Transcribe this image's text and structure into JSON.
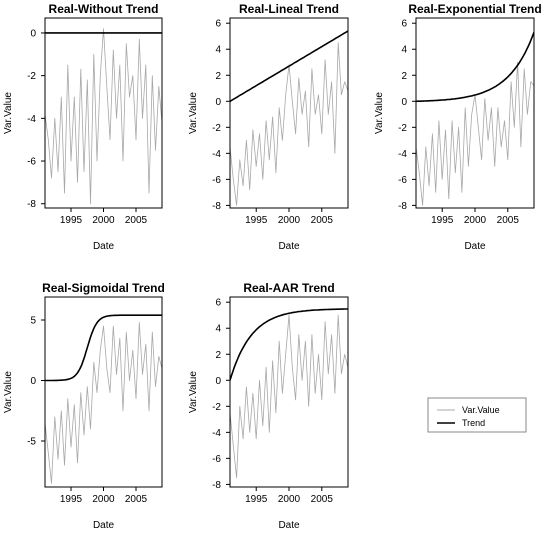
{
  "colors": {
    "var_value": "#a8a8a8",
    "trend": "#000000",
    "background": "#ffffff"
  },
  "legend": {
    "placement": "bottom-right",
    "items": [
      "Var.Value",
      "Trend"
    ]
  },
  "chart_data": [
    {
      "type": "line",
      "title": "Real-Without Trend",
      "xlabel": "Date",
      "ylabel": "Var.Value",
      "xlim": [
        1991,
        2009
      ],
      "ylim": [
        -8.2,
        0.7
      ],
      "xticks": [
        1995,
        2000,
        2005
      ],
      "yticks": [
        -8,
        -6,
        -4,
        -2,
        0
      ],
      "trend": {
        "kind": "constant",
        "value": 0
      },
      "series": [
        {
          "name": "Var.Value",
          "x": [
            1991.0,
            1991.5,
            1992.0,
            1992.5,
            1993.0,
            1993.5,
            1994.0,
            1994.5,
            1995.0,
            1995.5,
            1996.0,
            1996.5,
            1997.0,
            1997.5,
            1998.0,
            1998.5,
            1999.0,
            1999.5,
            2000.0,
            2000.5,
            2001.0,
            2001.5,
            2002.0,
            2002.5,
            2003.0,
            2003.5,
            2004.0,
            2004.5,
            2005.0,
            2005.5,
            2006.0,
            2006.5,
            2007.0,
            2007.5,
            2008.0,
            2008.5,
            2009.0
          ],
          "y": [
            -3.8,
            -5.0,
            -6.8,
            -4.0,
            -6.5,
            -3.0,
            -7.5,
            -1.5,
            -6.0,
            -3.0,
            -7.0,
            -1.7,
            -6.5,
            -2.2,
            -8.0,
            -1.0,
            -6.0,
            -2.0,
            0.2,
            -2.5,
            -5.0,
            -0.8,
            -4.0,
            -1.5,
            -6.0,
            -0.5,
            -3.0,
            -2.0,
            -5.0,
            -0.3,
            -4.0,
            -1.5,
            -7.5,
            -2.0,
            -5.5,
            -2.5,
            -4.2
          ]
        },
        {
          "name": "Trend",
          "x": [
            1991,
            2009
          ],
          "y": [
            0,
            0
          ]
        }
      ]
    },
    {
      "type": "line",
      "title": "Real-Lineal Trend",
      "xlabel": "Date",
      "ylabel": "Var.Value",
      "xlim": [
        1991,
        2009
      ],
      "ylim": [
        -8.2,
        6.4
      ],
      "xticks": [
        1995,
        2000,
        2005
      ],
      "yticks": [
        -8,
        -6,
        -4,
        -2,
        0,
        2,
        4,
        6
      ],
      "trend": {
        "kind": "linear",
        "start": 0,
        "end": 5.4
      },
      "series": [
        {
          "name": "Var.Value",
          "x": [
            1991.0,
            1991.5,
            1992.0,
            1992.5,
            1993.0,
            1993.5,
            1994.0,
            1994.5,
            1995.0,
            1995.5,
            1996.0,
            1996.5,
            1997.0,
            1997.5,
            1998.0,
            1998.5,
            1999.0,
            1999.5,
            2000.0,
            2000.5,
            2001.0,
            2001.5,
            2002.0,
            2002.5,
            2003.0,
            2003.5,
            2004.0,
            2004.5,
            2005.0,
            2005.5,
            2006.0,
            2006.5,
            2007.0,
            2007.5,
            2008.0,
            2008.5,
            2009.0
          ],
          "y": [
            -3.5,
            -6.0,
            -8.0,
            -4.5,
            -6.5,
            -3.0,
            -6.8,
            -2.2,
            -5.0,
            -2.5,
            -6.0,
            -1.5,
            -4.5,
            -1.2,
            -5.5,
            -0.5,
            -3.0,
            0.5,
            2.8,
            0.0,
            -2.5,
            1.8,
            -1.0,
            0.8,
            -3.5,
            2.5,
            -1.0,
            0.5,
            -2.5,
            3.2,
            -1.0,
            1.5,
            -4.0,
            4.5,
            0.5,
            1.5,
            0.8
          ]
        },
        {
          "name": "Trend",
          "x": [
            1991,
            2009
          ],
          "y": [
            0,
            5.4
          ]
        }
      ]
    },
    {
      "type": "line",
      "title": "Real-Exponential Trend",
      "xlabel": "Date",
      "ylabel": "Var.Value",
      "xlim": [
        1991,
        2009
      ],
      "ylim": [
        -8.2,
        6.4
      ],
      "xticks": [
        1995,
        2000,
        2005
      ],
      "yticks": [
        -8,
        -6,
        -4,
        -2,
        0,
        2,
        4,
        6
      ],
      "trend": {
        "kind": "exponential",
        "start": 0,
        "end": 5.3
      },
      "series": [
        {
          "name": "Var.Value",
          "x": [
            1991.0,
            1991.5,
            1992.0,
            1992.5,
            1993.0,
            1993.5,
            1994.0,
            1994.5,
            1995.0,
            1995.5,
            1996.0,
            1996.5,
            1997.0,
            1997.5,
            1998.0,
            1998.5,
            1999.0,
            1999.5,
            2000.0,
            2000.5,
            2001.0,
            2001.5,
            2002.0,
            2002.5,
            2003.0,
            2003.5,
            2004.0,
            2004.5,
            2005.0,
            2005.5,
            2006.0,
            2006.5,
            2007.0,
            2007.5,
            2008.0,
            2008.5,
            2009.0
          ],
          "y": [
            -3.5,
            -5.5,
            -8.0,
            -3.5,
            -6.5,
            -2.5,
            -7.0,
            -1.5,
            -6.0,
            -2.2,
            -7.5,
            -1.5,
            -5.5,
            -2.0,
            -7.0,
            -0.5,
            -5.0,
            -1.0,
            0.5,
            -2.0,
            -4.5,
            0.2,
            -3.0,
            -0.5,
            -5.0,
            -0.5,
            -3.5,
            -1.5,
            -4.5,
            1.5,
            -2.0,
            3.0,
            -3.5,
            2.5,
            -1.0,
            1.5,
            1.2
          ]
        },
        {
          "name": "Trend",
          "x": [
            1991,
            2009
          ],
          "y": [
            0,
            5.3
          ]
        }
      ]
    },
    {
      "type": "line",
      "title": "Real-Sigmoidal Trend",
      "xlabel": "Date",
      "ylabel": "Var.Value",
      "xlim": [
        1991,
        2009
      ],
      "ylim": [
        -8.8,
        6.9
      ],
      "xticks": [
        1995,
        2000,
        2005
      ],
      "yticks": [
        -5,
        0,
        5
      ],
      "trend": {
        "kind": "sigmoid",
        "max": 5.4,
        "midpoint": 1997.5
      },
      "series": [
        {
          "name": "Var.Value",
          "x": [
            1991.0,
            1991.5,
            1992.0,
            1992.5,
            1993.0,
            1993.5,
            1994.0,
            1994.5,
            1995.0,
            1995.5,
            1996.0,
            1996.5,
            1997.0,
            1997.5,
            1998.0,
            1998.5,
            1999.0,
            1999.5,
            2000.0,
            2000.5,
            2001.0,
            2001.5,
            2002.0,
            2002.5,
            2003.0,
            2003.5,
            2004.0,
            2004.5,
            2005.0,
            2005.5,
            2006.0,
            2006.5,
            2007.0,
            2007.5,
            2008.0,
            2008.5,
            2009.0
          ],
          "y": [
            -3.5,
            -6.0,
            -8.5,
            -3.0,
            -6.5,
            -2.5,
            -7.0,
            -1.5,
            -5.5,
            -2.0,
            -6.8,
            -1.0,
            -4.5,
            -0.5,
            -4.0,
            1.5,
            -1.0,
            2.5,
            4.5,
            1.0,
            -1.0,
            4.5,
            0.5,
            3.5,
            -2.5,
            4.0,
            0.0,
            2.5,
            -1.5,
            4.8,
            0.5,
            3.0,
            -2.5,
            4.0,
            -0.5,
            2.0,
            1.0
          ]
        },
        {
          "name": "Trend",
          "x": [
            1991,
            2009
          ],
          "y": [
            0,
            5.4
          ]
        }
      ]
    },
    {
      "type": "line",
      "title": "Real-AAR Trend",
      "xlabel": "Date",
      "ylabel": "Var.Value",
      "xlim": [
        1991,
        2009
      ],
      "ylim": [
        -8.2,
        6.4
      ],
      "xticks": [
        1995,
        2000,
        2005
      ],
      "yticks": [
        -8,
        -6,
        -4,
        -2,
        0,
        2,
        4,
        6
      ],
      "trend": {
        "kind": "saturating",
        "start": 0,
        "max": 5.5
      },
      "series": [
        {
          "name": "Var.Value",
          "x": [
            1991.0,
            1991.5,
            1992.0,
            1992.5,
            1993.0,
            1993.5,
            1994.0,
            1994.5,
            1995.0,
            1995.5,
            1996.0,
            1996.5,
            1997.0,
            1997.5,
            1998.0,
            1998.5,
            1999.0,
            1999.5,
            2000.0,
            2000.5,
            2001.0,
            2001.5,
            2002.0,
            2002.5,
            2003.0,
            2003.5,
            2004.0,
            2004.5,
            2005.0,
            2005.5,
            2006.0,
            2006.5,
            2007.0,
            2007.5,
            2008.0,
            2008.5,
            2009.0
          ],
          "y": [
            -2.5,
            -5.0,
            -7.5,
            -2.0,
            -4.5,
            -0.5,
            -4.0,
            -1.0,
            -4.5,
            0.0,
            -3.5,
            1.0,
            -4.0,
            1.5,
            -2.5,
            3.0,
            -1.0,
            2.0,
            5.0,
            1.0,
            -1.5,
            3.5,
            0.0,
            3.0,
            -2.0,
            3.5,
            -1.0,
            2.0,
            -1.5,
            4.5,
            0.5,
            3.5,
            -1.0,
            5.0,
            0.5,
            2.0,
            1.0
          ]
        },
        {
          "name": "Trend",
          "x": [
            1991,
            2009
          ],
          "y": [
            0,
            5.5
          ]
        }
      ]
    }
  ]
}
